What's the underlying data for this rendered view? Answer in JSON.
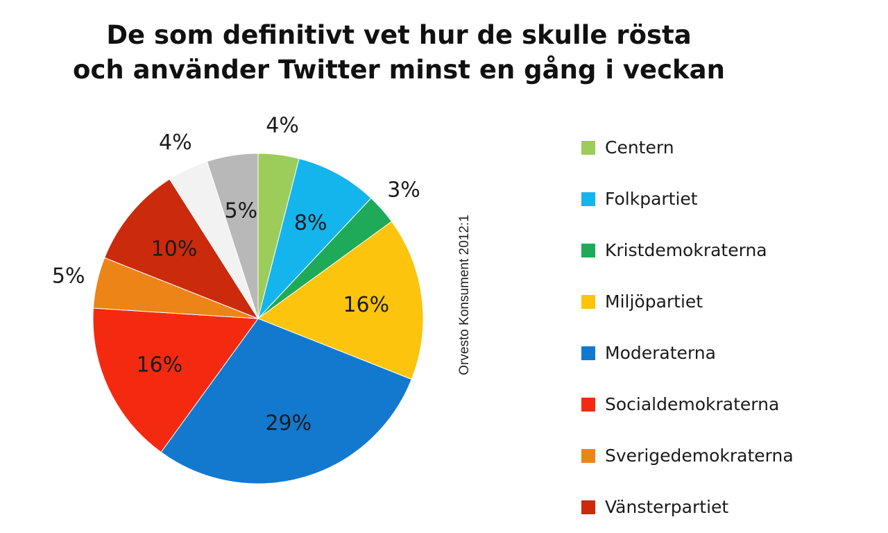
{
  "chart_data": {
    "type": "pie",
    "title_lines": [
      "De som definitivt vet hur de skulle rösta",
      "och använder Twitter minst en gång i veckan"
    ],
    "source": "Orvesto Konsument 2012:1",
    "slices": [
      {
        "label": "Centern",
        "value": 4,
        "display": "4%",
        "color": "#9ccc5a",
        "label_placement": "outside"
      },
      {
        "label": "Folkpartiet",
        "value": 8,
        "display": "8%",
        "color": "#14b4ec",
        "label_placement": "inside"
      },
      {
        "label": "Kristdemokraterna",
        "value": 3,
        "display": "3%",
        "color": "#1eaa58",
        "label_placement": "outside"
      },
      {
        "label": "Miljöpartiet",
        "value": 16,
        "display": "16%",
        "color": "#fcc40c",
        "label_placement": "inside"
      },
      {
        "label": "Moderaterna",
        "value": 29,
        "display": "29%",
        "color": "#1279cf",
        "label_placement": "inside"
      },
      {
        "label": "Socialdemokraterna",
        "value": 16,
        "display": "16%",
        "color": "#f42a10",
        "label_placement": "inside"
      },
      {
        "label": "Sverigedemokraterna",
        "value": 5,
        "display": "5%",
        "color": "#ec8418",
        "label_placement": "outside"
      },
      {
        "label": "Vänsterpartiet",
        "value": 10,
        "display": "10%",
        "color": "#cc2a0c",
        "label_placement": "inside"
      },
      {
        "label": "",
        "value": 4,
        "display": "4%",
        "color": "#f2f2f2",
        "label_placement": "outside"
      },
      {
        "label": "",
        "value": 5,
        "display": "5%",
        "color": "#b8b8b8",
        "label_placement": "inside"
      }
    ],
    "legend": [
      {
        "label": "Centern",
        "color": "#9ccc5a"
      },
      {
        "label": "Folkpartiet",
        "color": "#14b4ec"
      },
      {
        "label": "Kristdemokraterna",
        "color": "#1eaa58"
      },
      {
        "label": "Miljöpartiet",
        "color": "#fcc40c"
      },
      {
        "label": "Moderaterna",
        "color": "#1279cf"
      },
      {
        "label": "Socialdemokraterna",
        "color": "#f42a10"
      },
      {
        "label": "Sverigedemokraterna",
        "color": "#ec8418"
      },
      {
        "label": "Vänsterpartiet",
        "color": "#cc2a0c"
      }
    ],
    "legend_placement": "right"
  }
}
